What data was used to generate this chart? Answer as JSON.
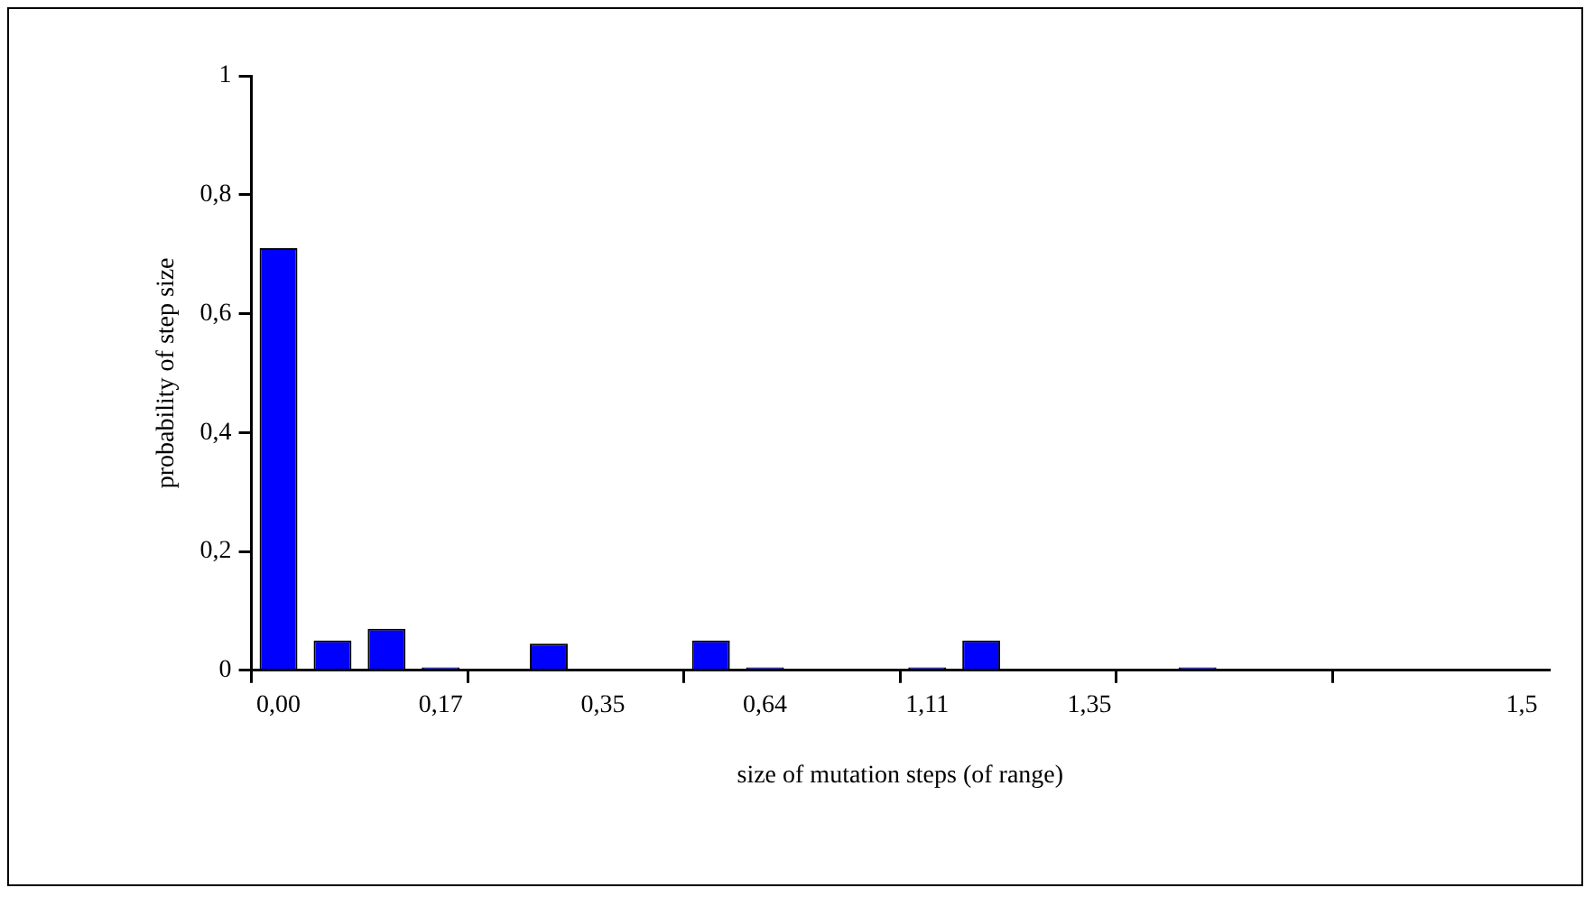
{
  "chart_data": {
    "type": "bar",
    "xlabel": "size of mutation steps (of range)",
    "ylabel": "probability of step size",
    "categories": [
      "0,00",
      null,
      null,
      "0,17",
      null,
      null,
      "0,35",
      null,
      null,
      "0,64",
      null,
      null,
      "1,11",
      null,
      null,
      "1,35",
      null,
      null,
      null,
      null,
      null,
      null,
      null,
      "1,5"
    ],
    "values": [
      0.71,
      0.05,
      0.07,
      0.005,
      0,
      0.045,
      0,
      0,
      0.05,
      0.005,
      0,
      0,
      0.005,
      0.05,
      0,
      0,
      0,
      0.005,
      0,
      0,
      0,
      0,
      0,
      0
    ],
    "color": "#0000ff",
    "ylim": [
      0,
      1
    ],
    "yticks": [
      0,
      {
        "value": 0.2,
        "label": "0,2"
      },
      {
        "value": 0.4,
        "label": "0,4"
      },
      {
        "value": 0.6,
        "label": "0,6"
      },
      {
        "value": 0.8,
        "label": "0,8"
      },
      1
    ],
    "grid": false,
    "legend": false
  }
}
